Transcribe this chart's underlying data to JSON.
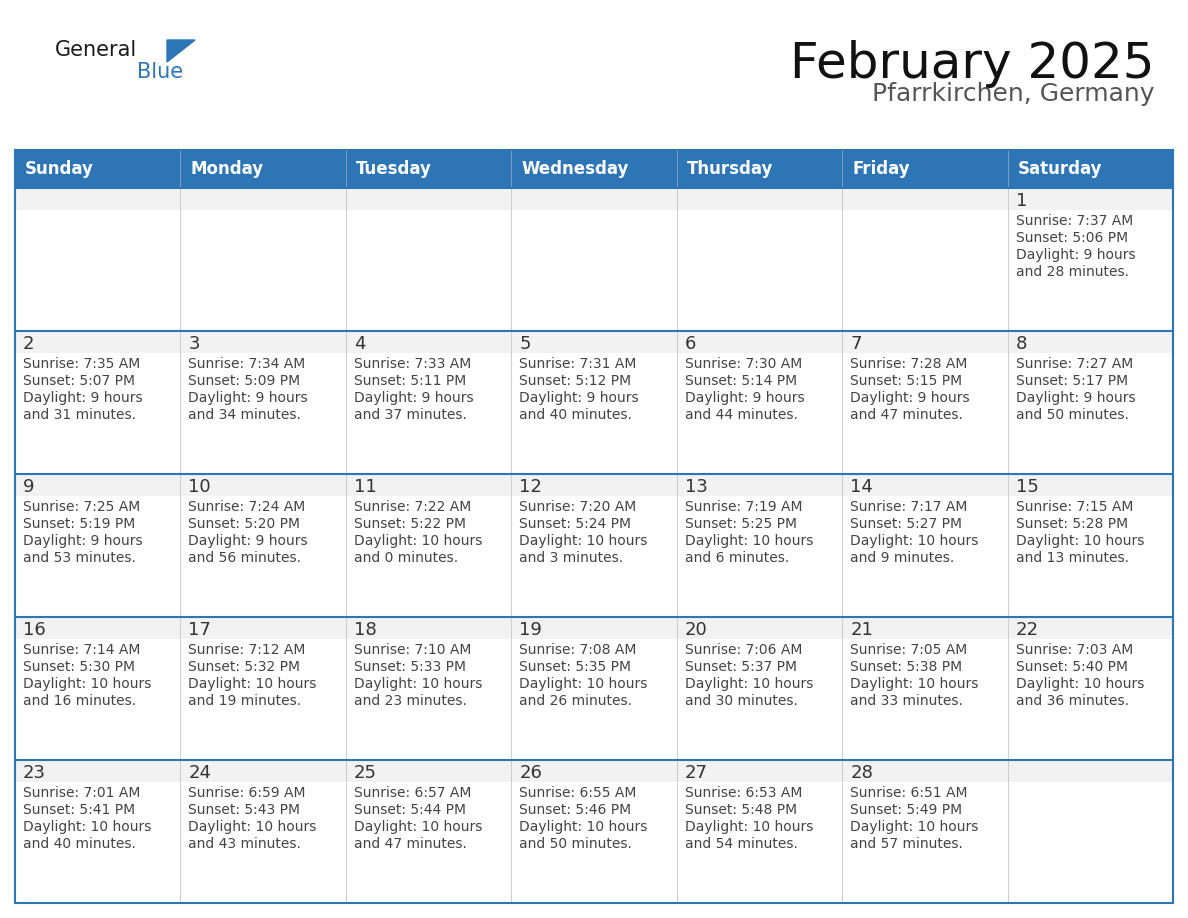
{
  "title": "February 2025",
  "subtitle": "Pfarrkirchen, Germany",
  "header_bg": "#2E75B6",
  "header_text_color": "#FFFFFF",
  "cell_bg": "#FFFFFF",
  "cell_day_bg": "#F2F2F2",
  "cell_line_color": "#2E75B6",
  "day_number_color": "#333333",
  "info_text_color": "#444444",
  "weekdays": [
    "Sunday",
    "Monday",
    "Tuesday",
    "Wednesday",
    "Thursday",
    "Friday",
    "Saturday"
  ],
  "logo_general_color": "#1a1a1a",
  "logo_blue_color": "#2E75B6",
  "title_fontsize": 36,
  "subtitle_fontsize": 18,
  "header_fontsize": 12,
  "day_num_fontsize": 13,
  "info_fontsize": 10,
  "calendar_data": [
    [
      null,
      null,
      null,
      null,
      null,
      null,
      {
        "day": 1,
        "sunrise": "7:37 AM",
        "sunset": "5:06 PM",
        "daylight": "9 hours",
        "daylight2": "and 28 minutes."
      }
    ],
    [
      {
        "day": 2,
        "sunrise": "7:35 AM",
        "sunset": "5:07 PM",
        "daylight": "9 hours",
        "daylight2": "and 31 minutes."
      },
      {
        "day": 3,
        "sunrise": "7:34 AM",
        "sunset": "5:09 PM",
        "daylight": "9 hours",
        "daylight2": "and 34 minutes."
      },
      {
        "day": 4,
        "sunrise": "7:33 AM",
        "sunset": "5:11 PM",
        "daylight": "9 hours",
        "daylight2": "and 37 minutes."
      },
      {
        "day": 5,
        "sunrise": "7:31 AM",
        "sunset": "5:12 PM",
        "daylight": "9 hours",
        "daylight2": "and 40 minutes."
      },
      {
        "day": 6,
        "sunrise": "7:30 AM",
        "sunset": "5:14 PM",
        "daylight": "9 hours",
        "daylight2": "and 44 minutes."
      },
      {
        "day": 7,
        "sunrise": "7:28 AM",
        "sunset": "5:15 PM",
        "daylight": "9 hours",
        "daylight2": "and 47 minutes."
      },
      {
        "day": 8,
        "sunrise": "7:27 AM",
        "sunset": "5:17 PM",
        "daylight": "9 hours",
        "daylight2": "and 50 minutes."
      }
    ],
    [
      {
        "day": 9,
        "sunrise": "7:25 AM",
        "sunset": "5:19 PM",
        "daylight": "9 hours",
        "daylight2": "and 53 minutes."
      },
      {
        "day": 10,
        "sunrise": "7:24 AM",
        "sunset": "5:20 PM",
        "daylight": "9 hours",
        "daylight2": "and 56 minutes."
      },
      {
        "day": 11,
        "sunrise": "7:22 AM",
        "sunset": "5:22 PM",
        "daylight": "10 hours",
        "daylight2": "and 0 minutes."
      },
      {
        "day": 12,
        "sunrise": "7:20 AM",
        "sunset": "5:24 PM",
        "daylight": "10 hours",
        "daylight2": "and 3 minutes."
      },
      {
        "day": 13,
        "sunrise": "7:19 AM",
        "sunset": "5:25 PM",
        "daylight": "10 hours",
        "daylight2": "and 6 minutes."
      },
      {
        "day": 14,
        "sunrise": "7:17 AM",
        "sunset": "5:27 PM",
        "daylight": "10 hours",
        "daylight2": "and 9 minutes."
      },
      {
        "day": 15,
        "sunrise": "7:15 AM",
        "sunset": "5:28 PM",
        "daylight": "10 hours",
        "daylight2": "and 13 minutes."
      }
    ],
    [
      {
        "day": 16,
        "sunrise": "7:14 AM",
        "sunset": "5:30 PM",
        "daylight": "10 hours",
        "daylight2": "and 16 minutes."
      },
      {
        "day": 17,
        "sunrise": "7:12 AM",
        "sunset": "5:32 PM",
        "daylight": "10 hours",
        "daylight2": "and 19 minutes."
      },
      {
        "day": 18,
        "sunrise": "7:10 AM",
        "sunset": "5:33 PM",
        "daylight": "10 hours",
        "daylight2": "and 23 minutes."
      },
      {
        "day": 19,
        "sunrise": "7:08 AM",
        "sunset": "5:35 PM",
        "daylight": "10 hours",
        "daylight2": "and 26 minutes."
      },
      {
        "day": 20,
        "sunrise": "7:06 AM",
        "sunset": "5:37 PM",
        "daylight": "10 hours",
        "daylight2": "and 30 minutes."
      },
      {
        "day": 21,
        "sunrise": "7:05 AM",
        "sunset": "5:38 PM",
        "daylight": "10 hours",
        "daylight2": "and 33 minutes."
      },
      {
        "day": 22,
        "sunrise": "7:03 AM",
        "sunset": "5:40 PM",
        "daylight": "10 hours",
        "daylight2": "and 36 minutes."
      }
    ],
    [
      {
        "day": 23,
        "sunrise": "7:01 AM",
        "sunset": "5:41 PM",
        "daylight": "10 hours",
        "daylight2": "and 40 minutes."
      },
      {
        "day": 24,
        "sunrise": "6:59 AM",
        "sunset": "5:43 PM",
        "daylight": "10 hours",
        "daylight2": "and 43 minutes."
      },
      {
        "day": 25,
        "sunrise": "6:57 AM",
        "sunset": "5:44 PM",
        "daylight": "10 hours",
        "daylight2": "and 47 minutes."
      },
      {
        "day": 26,
        "sunrise": "6:55 AM",
        "sunset": "5:46 PM",
        "daylight": "10 hours",
        "daylight2": "and 50 minutes."
      },
      {
        "day": 27,
        "sunrise": "6:53 AM",
        "sunset": "5:48 PM",
        "daylight": "10 hours",
        "daylight2": "and 54 minutes."
      },
      {
        "day": 28,
        "sunrise": "6:51 AM",
        "sunset": "5:49 PM",
        "daylight": "10 hours",
        "daylight2": "and 57 minutes."
      },
      null
    ]
  ]
}
